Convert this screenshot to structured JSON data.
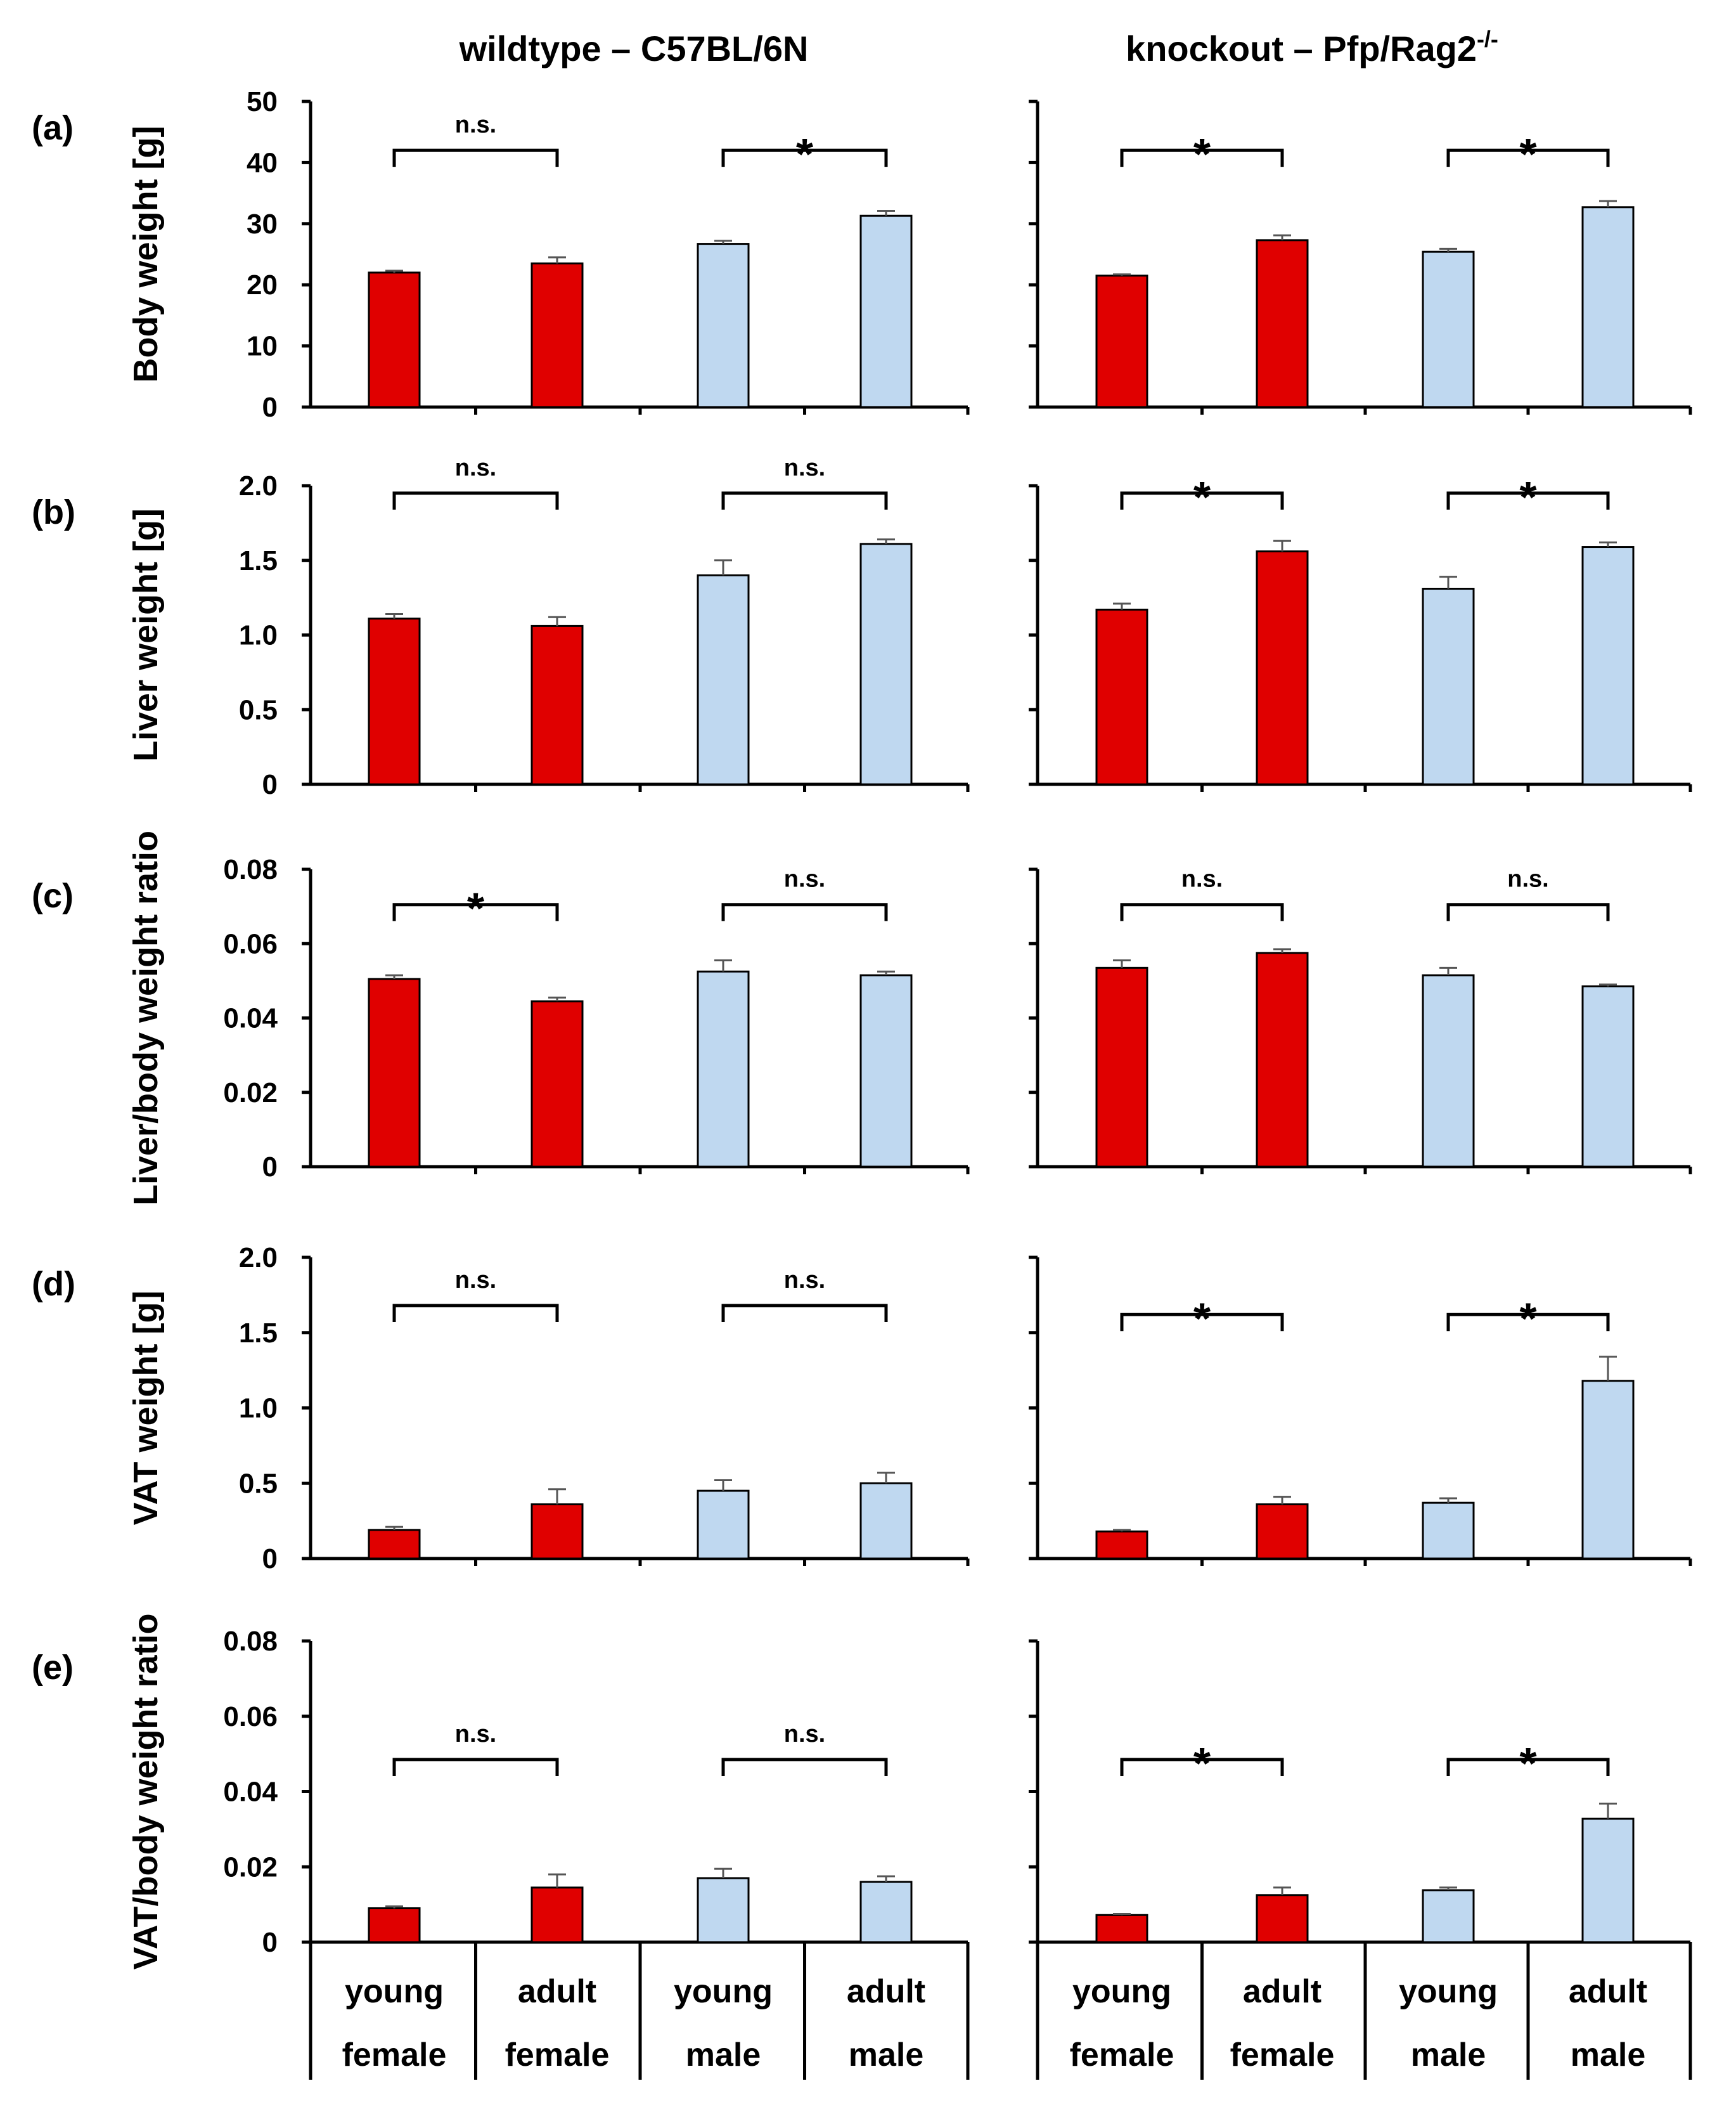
{
  "colors": {
    "female": "#e00000",
    "male": "#bfd8f0"
  },
  "column_titles": [
    "wildtype – C57BL/6N",
    "knockout – Pfp/Rag2"
  ],
  "knockout_superscript": "-/-",
  "categories": [
    {
      "line1": "young",
      "line2": "female"
    },
    {
      "line1": "adult",
      "line2": "female"
    },
    {
      "line1": "young",
      "line2": "male"
    },
    {
      "line1": "adult",
      "line2": "male"
    }
  ],
  "chart_data": [
    {
      "type": "bar",
      "panel": "(a)",
      "ylabel": "Body weight  [g]",
      "ylim": [
        0,
        50
      ],
      "ticks": [
        {
          "v": 0,
          "t": "0"
        },
        {
          "v": 10,
          "t": "10"
        },
        {
          "v": 20,
          "t": "20"
        },
        {
          "v": 30,
          "t": "30"
        },
        {
          "v": 40,
          "t": "40"
        },
        {
          "v": 50,
          "t": "50"
        }
      ],
      "wildtype": {
        "values": [
          22.0,
          23.5,
          26.7,
          31.3
        ],
        "errors": [
          0.3,
          1.0,
          0.5,
          0.8
        ],
        "sig": [
          "n.s.",
          "*"
        ],
        "bracket_y": 42
      },
      "knockout": {
        "values": [
          21.5,
          27.3,
          25.4,
          32.7
        ],
        "errors": [
          0.2,
          0.8,
          0.5,
          1.0
        ],
        "sig": [
          "*",
          "*"
        ],
        "bracket_y": 42
      }
    },
    {
      "type": "bar",
      "panel": "(b)",
      "ylabel": "Liver weight  [g]",
      "ylim": [
        0,
        2.0
      ],
      "ticks": [
        {
          "v": 0,
          "t": "0"
        },
        {
          "v": 0.5,
          "t": "0.5"
        },
        {
          "v": 1.0,
          "t": "1.0"
        },
        {
          "v": 1.5,
          "t": "1.5"
        },
        {
          "v": 2.0,
          "t": "2.0"
        }
      ],
      "wildtype": {
        "values": [
          1.11,
          1.06,
          1.4,
          1.61
        ],
        "errors": [
          0.03,
          0.06,
          0.1,
          0.03
        ],
        "sig": [
          "n.s.",
          "n.s."
        ],
        "bracket_y": 1.95
      },
      "knockout": {
        "values": [
          1.17,
          1.56,
          1.31,
          1.59
        ],
        "errors": [
          0.04,
          0.07,
          0.08,
          0.03
        ],
        "sig": [
          "*",
          "*"
        ],
        "bracket_y": 1.95
      }
    },
    {
      "type": "bar",
      "panel": "(c)",
      "ylabel": "Liver/body weight ratio",
      "ylim": [
        0,
        0.08
      ],
      "ticks": [
        {
          "v": 0,
          "t": "0"
        },
        {
          "v": 0.02,
          "t": "0.02"
        },
        {
          "v": 0.04,
          "t": "0.04"
        },
        {
          "v": 0.06,
          "t": "0.06"
        },
        {
          "v": 0.08,
          "t": "0.08"
        }
      ],
      "wildtype": {
        "values": [
          0.0505,
          0.0445,
          0.0525,
          0.0515
        ],
        "errors": [
          0.001,
          0.001,
          0.003,
          0.001
        ],
        "sig": [
          "*",
          "n.s."
        ],
        "bracket_y": 0.0705
      },
      "knockout": {
        "values": [
          0.0535,
          0.0575,
          0.0515,
          0.0485
        ],
        "errors": [
          0.002,
          0.001,
          0.002,
          0.0005
        ],
        "sig": [
          "n.s.",
          "n.s."
        ],
        "bracket_y": 0.0705
      }
    },
    {
      "type": "bar",
      "panel": "(d)",
      "ylabel": "VAT weight  [g]",
      "ylim": [
        0,
        2.0
      ],
      "ticks": [
        {
          "v": 0,
          "t": "0"
        },
        {
          "v": 0.5,
          "t": "0.5"
        },
        {
          "v": 1.0,
          "t": "1.0"
        },
        {
          "v": 1.5,
          "t": "1.5"
        },
        {
          "v": 2.0,
          "t": "2.0"
        }
      ],
      "wildtype": {
        "values": [
          0.19,
          0.36,
          0.45,
          0.5
        ],
        "errors": [
          0.02,
          0.1,
          0.07,
          0.07
        ],
        "sig": [
          "n.s.",
          "n.s."
        ],
        "bracket_y": 1.68
      },
      "knockout": {
        "values": [
          0.18,
          0.36,
          0.37,
          1.18
        ],
        "errors": [
          0.01,
          0.05,
          0.03,
          0.16
        ],
        "sig": [
          "*",
          "*"
        ],
        "bracket_y": 1.62
      }
    },
    {
      "type": "bar",
      "panel": "(e)",
      "ylabel": "VAT/body weight ratio",
      "ylim": [
        0,
        0.08
      ],
      "ticks": [
        {
          "v": 0,
          "t": "0"
        },
        {
          "v": 0.02,
          "t": "0.02"
        },
        {
          "v": 0.04,
          "t": "0.04"
        },
        {
          "v": 0.06,
          "t": "0.06"
        },
        {
          "v": 0.08,
          "t": "0.08"
        }
      ],
      "wildtype": {
        "values": [
          0.009,
          0.0145,
          0.017,
          0.016
        ],
        "errors": [
          0.0005,
          0.0035,
          0.0025,
          0.0015
        ],
        "sig": [
          "n.s.",
          "n.s."
        ],
        "bracket_y": 0.0485
      },
      "knockout": {
        "values": [
          0.0072,
          0.0125,
          0.0138,
          0.0328
        ],
        "errors": [
          0.0003,
          0.002,
          0.0007,
          0.004
        ],
        "sig": [
          "*",
          "*"
        ],
        "bracket_y": 0.0485
      }
    }
  ]
}
